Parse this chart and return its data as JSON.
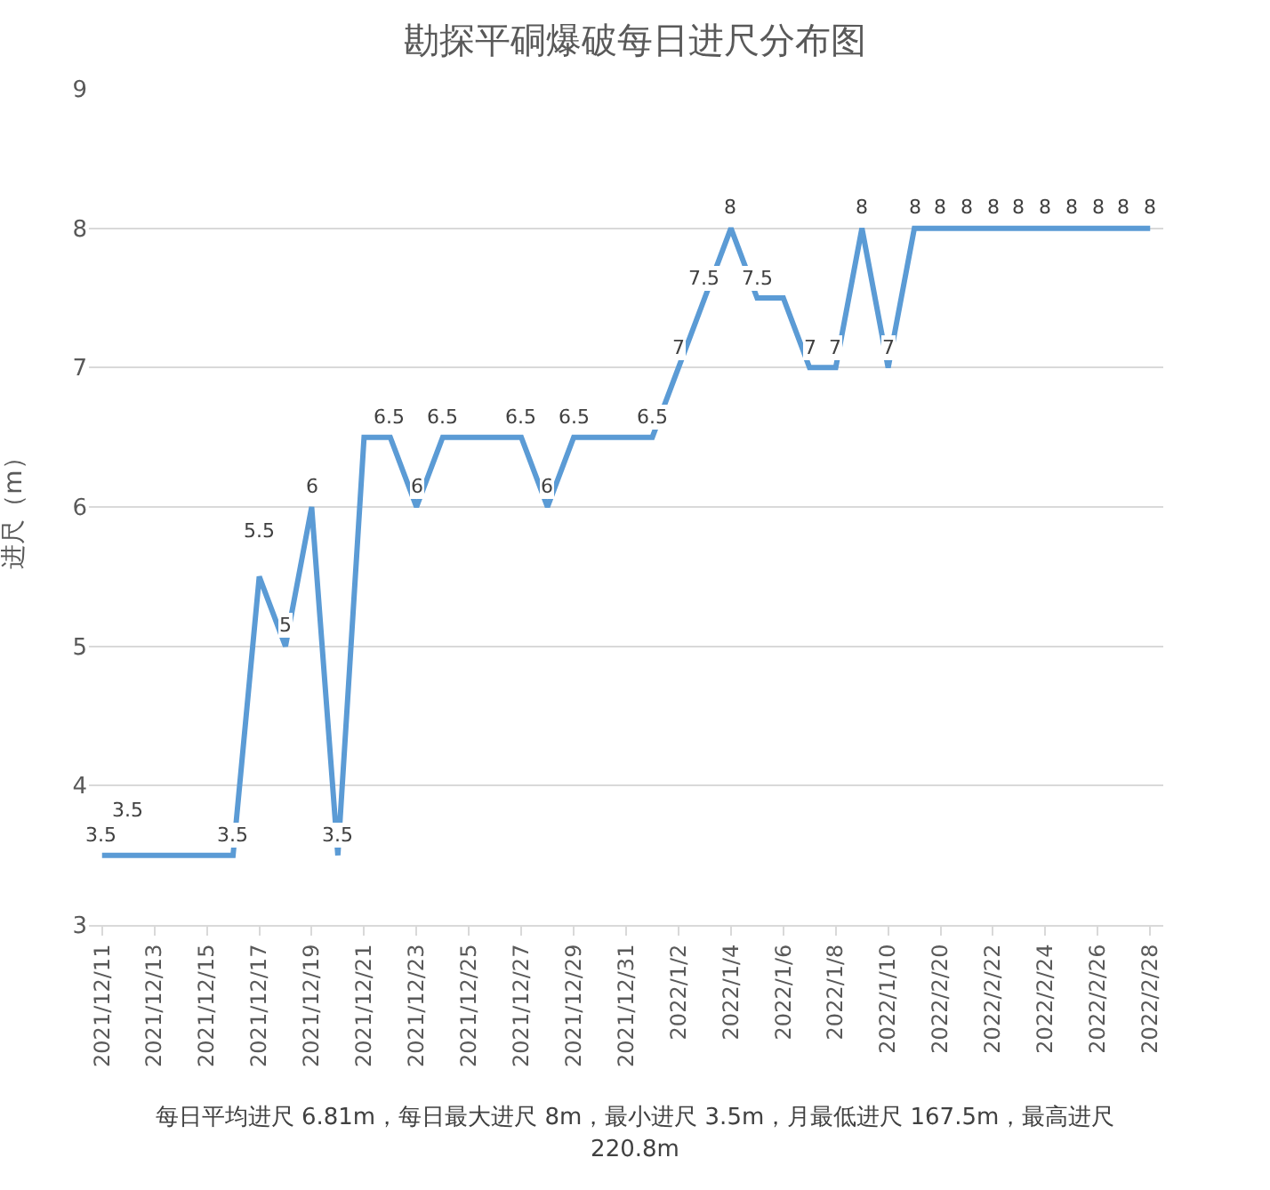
{
  "chart_data": {
    "type": "line",
    "title": "勘探平硐爆破每日进尺分布图",
    "ylabel": "进尺（m）",
    "categories": [
      "2021/12/11",
      null,
      "2021/12/13",
      null,
      "2021/12/15",
      null,
      "2021/12/17",
      null,
      "2021/12/19",
      null,
      "2021/12/21",
      null,
      "2021/12/23",
      null,
      "2021/12/25",
      null,
      "2021/12/27",
      null,
      "2021/12/29",
      null,
      "2021/12/31",
      null,
      "2022/1/2",
      null,
      "2022/1/4",
      null,
      "2022/1/6",
      null,
      "2022/1/8",
      null,
      "2022/1/10",
      null,
      "2022/2/20",
      null,
      "2022/2/22",
      null,
      "2022/2/24",
      null,
      "2022/2/26",
      null,
      "2022/2/28"
    ],
    "series": [
      {
        "color": "#5b9bd5",
        "values": [
          3.5,
          3.5,
          3.5,
          3.5,
          3.5,
          3.5,
          5.5,
          5,
          6,
          3.5,
          6.5,
          6.5,
          6,
          6.5,
          6.5,
          6.5,
          6.5,
          6,
          6.5,
          6.5,
          6.5,
          6.5,
          7,
          7.5,
          8,
          7.5,
          7.5,
          7,
          7,
          8,
          7,
          8,
          8,
          8,
          8,
          8,
          8,
          8,
          8,
          8,
          8
        ],
        "value_labels": [
          "3.5",
          "3.5",
          null,
          null,
          null,
          "3.5",
          "5.5",
          "5",
          "6",
          "3.5",
          null,
          "6.5",
          "6",
          "6.5",
          null,
          null,
          "6.5",
          "6",
          "6.5",
          null,
          null,
          "6.5",
          "7",
          "7.5",
          "8",
          "7.5",
          null,
          "7",
          "7",
          "8",
          "7",
          "8",
          "8",
          "8",
          "8",
          "8",
          "8",
          "8",
          "8",
          "8",
          "8"
        ]
      }
    ],
    "ylim": [
      3,
      9
    ],
    "yticks": [
      3,
      4,
      5,
      6,
      7,
      8,
      9
    ],
    "grid": "y",
    "marker": "none",
    "line_style": "solid",
    "annotations": [
      "每日平均进尺 6.81m，每日最大进尺 8m，最小进尺 3.5m，月最低进尺 167.5m，最高进尺 220.8m"
    ]
  }
}
